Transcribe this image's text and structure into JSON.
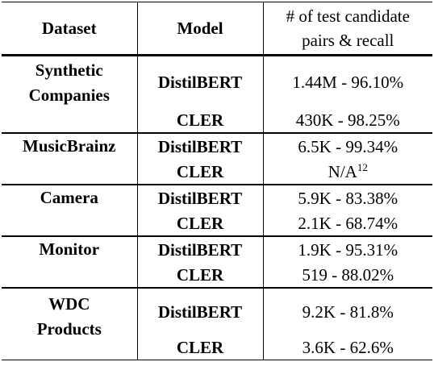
{
  "table": {
    "headers": {
      "dataset": "Dataset",
      "model": "Model",
      "metric_line1": "# of test candidate",
      "metric_line2": "pairs & recall"
    },
    "groups": [
      {
        "dataset_line1": "Synthetic",
        "dataset_line2": "Companies",
        "rows": [
          {
            "model": "DistilBERT",
            "value": "1.44M - 96.10%"
          },
          {
            "model": "CLER",
            "value": "430K - 98.25%"
          }
        ]
      },
      {
        "dataset_line1": "MusicBrainz",
        "dataset_line2": "",
        "rows": [
          {
            "model": "DistilBERT",
            "value": "6.5K - 99.34%"
          },
          {
            "model": "CLER",
            "value": "N/A",
            "footnote": "12"
          }
        ]
      },
      {
        "dataset_line1": "Camera",
        "dataset_line2": "",
        "rows": [
          {
            "model": "DistilBERT",
            "value": "5.9K - 83.38%"
          },
          {
            "model": "CLER",
            "value": "2.1K - 68.74%"
          }
        ]
      },
      {
        "dataset_line1": "Monitor",
        "dataset_line2": "",
        "rows": [
          {
            "model": "DistilBERT",
            "value": "1.9K - 95.31%"
          },
          {
            "model": "CLER",
            "value": "519 - 88.02%"
          }
        ]
      },
      {
        "dataset_line1": "WDC",
        "dataset_line2": "Products",
        "rows": [
          {
            "model": "DistilBERT",
            "value": "9.2K - 81.8%"
          },
          {
            "model": "CLER",
            "value": "3.6K - 62.6%"
          }
        ]
      }
    ]
  }
}
